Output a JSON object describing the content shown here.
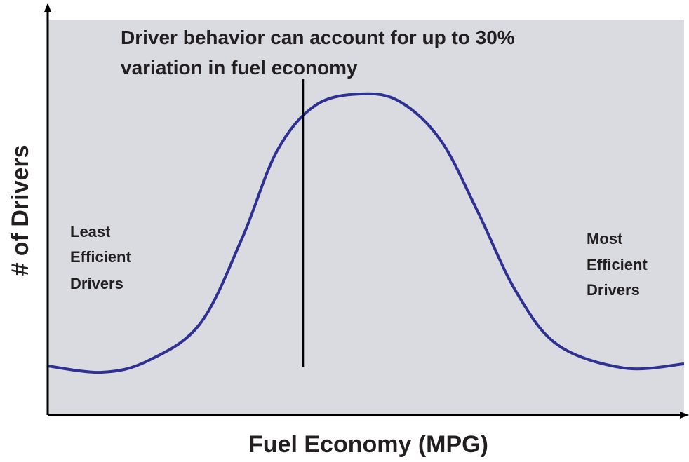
{
  "title": [
    "Driver behavior can account for up to 30%",
    "variation in fuel economy"
  ],
  "y_axis_label": "# of Drivers",
  "x_axis_label": "Fuel Economy (MPG)",
  "left_label": [
    "Least",
    "Efficient",
    "Drivers"
  ],
  "right_label": [
    "Most",
    "Efficient",
    "Drivers"
  ]
}
